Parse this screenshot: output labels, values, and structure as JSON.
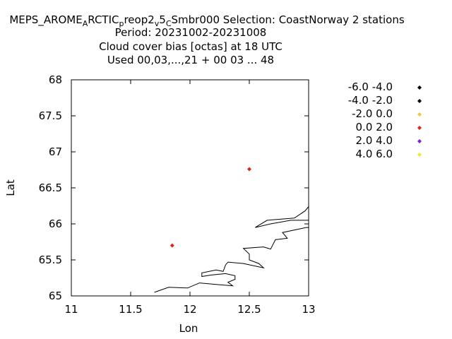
{
  "chart_data": {
    "type": "scatter",
    "title_lines": [
      {
        "segments": [
          {
            "text": "MEPS_AROME",
            "style": "normal"
          },
          {
            "text": "A",
            "style": "sub"
          },
          {
            "text": "RCTIC",
            "style": "normal"
          },
          {
            "text": "p",
            "style": "sub"
          },
          {
            "text": "reop2",
            "style": "normal"
          },
          {
            "text": "v",
            "style": "sub"
          },
          {
            "text": "5",
            "style": "normal"
          },
          {
            "text": "C",
            "style": "sub"
          },
          {
            "text": "Smbr000   Selection: CoastNorway      2 stations",
            "style": "normal"
          }
        ]
      },
      {
        "text": "Period: 20231002-20231008"
      },
      {
        "text": "Cloud cover bias [octas] at  18 UTC"
      },
      {
        "text": "Used  00,03,...,21  + 00 03 ... 48"
      }
    ],
    "xlabel": "Lon",
    "ylabel": "Lat",
    "xlim": [
      11,
      13
    ],
    "ylim": [
      65,
      68
    ],
    "xticks": [
      11,
      11.5,
      12,
      12.5,
      13
    ],
    "yticks": [
      65,
      65.5,
      66,
      66.5,
      67,
      67.5,
      68
    ],
    "xtick_labels": [
      "11",
      "11.5",
      "12",
      "12.5",
      "13"
    ],
    "ytick_labels": [
      "65",
      "65.5",
      "66",
      "66.5",
      "67",
      "67.5",
      "68"
    ],
    "grid": false,
    "legend_position": "right",
    "legend": [
      {
        "label": "-6.0 -4.0",
        "color": "#000000"
      },
      {
        "label": "-4.0 -2.0",
        "color": "#000000"
      },
      {
        "label": "-2.0 0.0",
        "color": "#f5c542"
      },
      {
        "label": "0.0 2.0",
        "color": "#d42a1a"
      },
      {
        "label": "2.0 4.0",
        "color": "#7b1fd6"
      },
      {
        "label": "4.0 6.0",
        "color": "#f3e43a"
      }
    ],
    "series": [
      {
        "bin": "0.0 2.0",
        "color": "#d42a1a",
        "points": [
          {
            "x": 11.85,
            "y": 65.7
          },
          {
            "x": 12.5,
            "y": 66.76
          }
        ]
      }
    ],
    "coastline": [
      [
        [
          11.7,
          65.05
        ],
        [
          11.82,
          65.12
        ],
        [
          11.98,
          65.11
        ],
        [
          12.08,
          65.18
        ],
        [
          12.22,
          65.16
        ],
        [
          12.36,
          65.14
        ],
        [
          12.32,
          65.19
        ],
        [
          12.38,
          65.23
        ],
        [
          12.38,
          65.28
        ],
        [
          12.3,
          65.31
        ],
        [
          12.18,
          65.29
        ],
        [
          12.1,
          65.27
        ],
        [
          12.1,
          65.32
        ],
        [
          12.22,
          65.36
        ],
        [
          12.28,
          65.34
        ],
        [
          12.3,
          65.43
        ],
        [
          12.32,
          65.47
        ],
        [
          12.45,
          65.45
        ],
        [
          12.62,
          65.39
        ],
        [
          12.58,
          65.45
        ],
        [
          12.5,
          65.5
        ],
        [
          12.5,
          65.58
        ],
        [
          12.45,
          65.66
        ],
        [
          12.62,
          65.68
        ],
        [
          12.68,
          65.65
        ],
        [
          12.72,
          65.78
        ],
        [
          12.82,
          65.8
        ],
        [
          12.78,
          65.88
        ],
        [
          12.98,
          65.95
        ],
        [
          13.0,
          65.95
        ]
      ],
      [
        [
          13.0,
          66.05
        ],
        [
          12.85,
          66.05
        ],
        [
          12.68,
          66.0
        ],
        [
          12.55,
          65.95
        ],
        [
          12.65,
          66.05
        ],
        [
          12.88,
          66.08
        ],
        [
          12.97,
          66.18
        ],
        [
          13.0,
          66.24
        ]
      ]
    ]
  }
}
